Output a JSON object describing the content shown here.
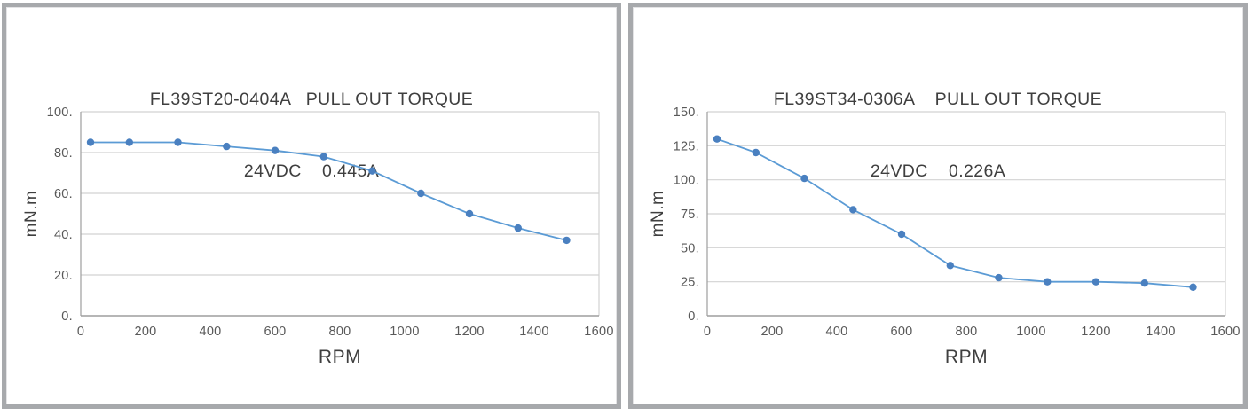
{
  "styles": {
    "background": "#ffffff",
    "panel_border": "#a7a9ac",
    "grid_color": "#d2d2d2",
    "axis_color": "#9e9e9e",
    "title_color": "#3f3f3f",
    "tick_color": "#595959"
  },
  "chart_data": [
    {
      "type": "line",
      "model": "FL39ST20-0404A",
      "title": "PULL OUT TORQUE",
      "voltage": "24VDC",
      "current": "0.445A",
      "title_line1": "FL39ST20-0404A   PULL OUT TORQUE",
      "title_line2": "24VDC    0.445A",
      "xlabel": "RPM",
      "ylabel": "mN.m",
      "x": [
        30,
        150,
        300,
        450,
        600,
        750,
        900,
        1050,
        1200,
        1350,
        1500
      ],
      "values": [
        85,
        85,
        85,
        83,
        81,
        78,
        71,
        60,
        50,
        43,
        37
      ],
      "xlim": [
        0,
        1600
      ],
      "ylim": [
        0,
        100
      ],
      "xticks": [
        0,
        200,
        400,
        600,
        800,
        1000,
        1200,
        1400,
        1600
      ],
      "yticks": [
        0,
        20,
        40,
        60,
        80,
        100
      ],
      "ytick_suffix": ".",
      "grid": true,
      "legend": false,
      "line_color": "#5b9bd5",
      "marker_color": "#4a80c0"
    },
    {
      "type": "line",
      "model": "FL39ST34-0306A",
      "title": "PULL OUT TORQUE",
      "voltage": "24VDC",
      "current": "0.226A",
      "title_line1": "FL39ST34-0306A    PULL OUT TORQUE",
      "title_line2": "24VDC    0.226A",
      "xlabel": "RPM",
      "ylabel": "mN.m",
      "x": [
        30,
        150,
        300,
        450,
        600,
        750,
        900,
        1050,
        1200,
        1350,
        1500
      ],
      "values": [
        130,
        120,
        101,
        78,
        60,
        37,
        28,
        25,
        25,
        24,
        21
      ],
      "xlim": [
        0,
        1600
      ],
      "ylim": [
        0,
        150
      ],
      "xticks": [
        0,
        200,
        400,
        600,
        800,
        1000,
        1200,
        1400,
        1600
      ],
      "yticks": [
        0,
        25,
        50,
        75,
        100,
        125,
        150
      ],
      "ytick_suffix": ".",
      "grid": true,
      "legend": false,
      "line_color": "#5b9bd5",
      "marker_color": "#4a80c0"
    }
  ]
}
